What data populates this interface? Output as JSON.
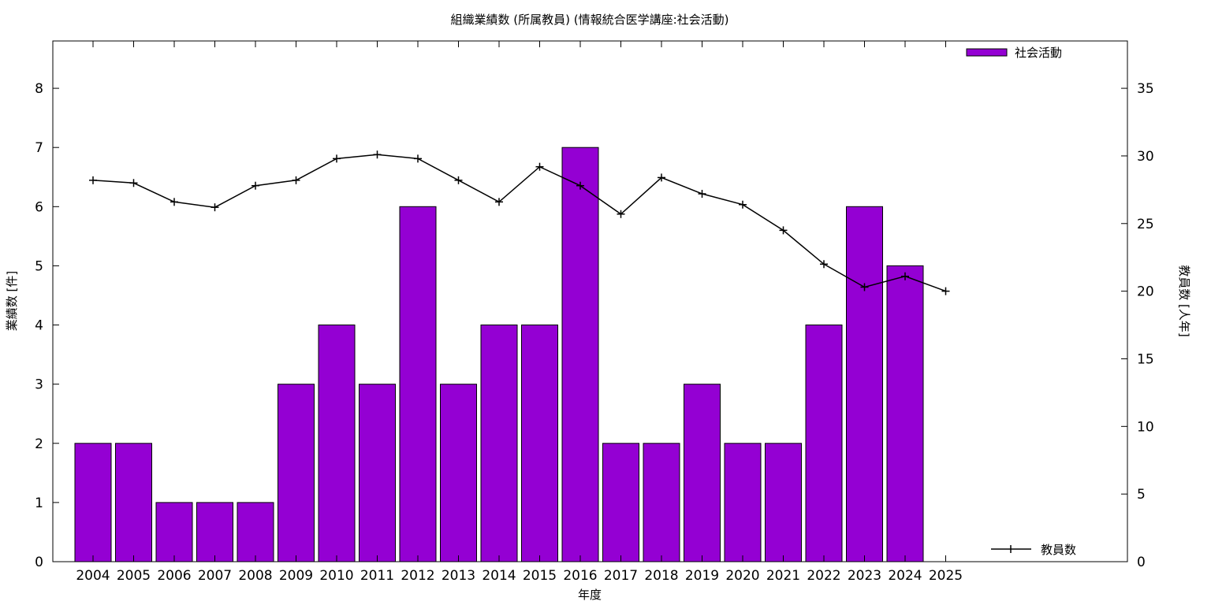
{
  "chart_data": {
    "type": "bar",
    "title": "組織業績数 (所属教員) (情報統合医学講座:社会活動)",
    "xlabel": "年度",
    "ylabel": "業績数 [件]",
    "y2label": "教員数 [人年]",
    "categories": [
      "2004",
      "2005",
      "2006",
      "2007",
      "2008",
      "2009",
      "2010",
      "2011",
      "2012",
      "2013",
      "2014",
      "2015",
      "2016",
      "2017",
      "2018",
      "2019",
      "2020",
      "2021",
      "2022",
      "2023",
      "2024",
      "2025"
    ],
    "ylim": [
      0,
      8.8
    ],
    "y2lim": [
      0,
      38.5
    ],
    "yticks": [
      0,
      1,
      2,
      3,
      4,
      5,
      6,
      7,
      8
    ],
    "y2ticks": [
      0,
      5,
      10,
      15,
      20,
      25,
      30,
      35
    ],
    "grid": false,
    "series": [
      {
        "name": "社会活動",
        "type": "bar",
        "axis": "left",
        "color": "#9400d3",
        "values": [
          2,
          2,
          1,
          1,
          1,
          3,
          4,
          3,
          6,
          3,
          4,
          4,
          7,
          2,
          2,
          3,
          2,
          2,
          4,
          6,
          5,
          null
        ]
      },
      {
        "name": "教員数",
        "type": "line",
        "axis": "right",
        "color": "#000000",
        "values": [
          28.2,
          28.0,
          26.6,
          26.2,
          27.8,
          28.2,
          29.8,
          30.1,
          29.8,
          28.2,
          26.6,
          29.2,
          27.8,
          25.7,
          28.4,
          27.2,
          26.4,
          24.5,
          22.0,
          20.3,
          21.1,
          20.0
        ]
      }
    ],
    "legend": [
      {
        "label": "社会活動",
        "kind": "bar",
        "placement": "top-right"
      },
      {
        "label": "教員数",
        "kind": "line",
        "placement": "bottom-right"
      }
    ]
  }
}
